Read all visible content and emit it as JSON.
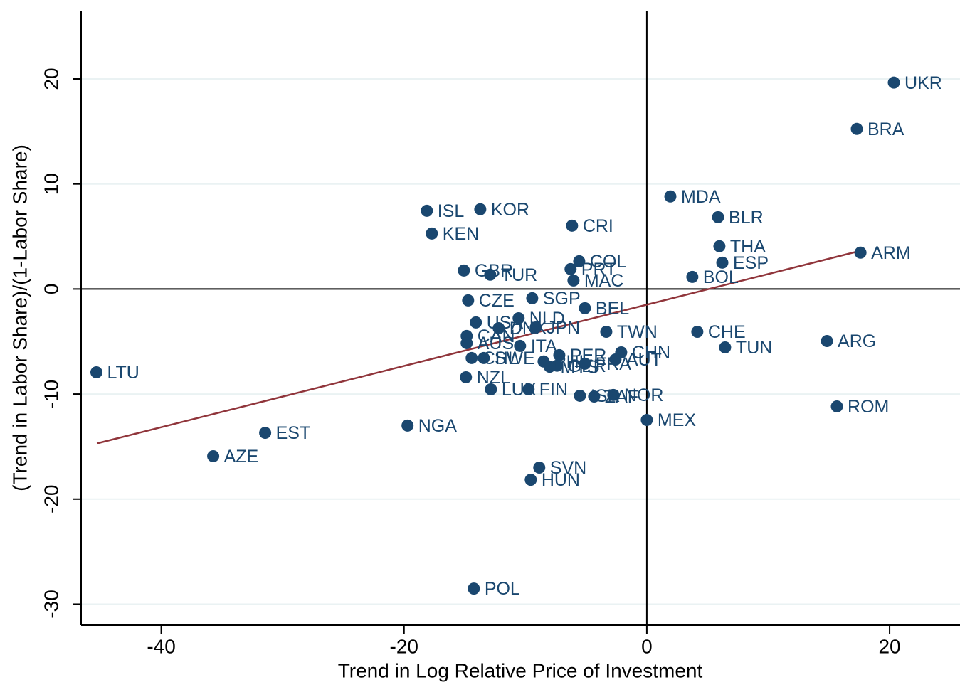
{
  "chart_data": {
    "type": "scatter",
    "x_label": "Trend in Log Relative Price of Investment",
    "y_label": "(Trend in Labor Share)/(1-Labor Share)",
    "color": "#1a476f",
    "x": [
      20.35,
      17.3,
      1.94,
      5.87,
      17.6,
      5.98,
      6.22,
      3.75,
      -6.16,
      -18.12,
      -13.72,
      -17.71,
      -15.07,
      -12.9,
      -5.57,
      -6.28,
      -6.04,
      -9.44,
      -14.72,
      -5.1,
      -14.08,
      -10.56,
      -12.2,
      -9.15,
      -3.34,
      4.16,
      -14.84,
      -14.84,
      -10.44,
      14.84,
      6.45,
      -2.11,
      -7.21,
      -2.58,
      -5.1,
      -7.4,
      -8.5,
      -8.0,
      -14.43,
      -13.43,
      -14.9,
      -12.84,
      -9.74,
      -2.76,
      -5.51,
      -4.34,
      0,
      15.66,
      -45.34,
      -31.44,
      -35.72,
      -19.71,
      -8.86,
      -9.56,
      -14.25
    ],
    "y": [
      19.65,
      15.24,
      8.81,
      6.84,
      3.46,
      4.07,
      2.51,
      1.15,
      6.03,
      7.45,
      7.59,
      5.28,
      1.76,
      1.36,
      2.64,
      1.9,
      0.81,
      -0.88,
      -1.08,
      -1.83,
      -3.18,
      -2.78,
      -3.73,
      -3.66,
      -4.07,
      -4.07,
      -4.47,
      -5.15,
      -5.42,
      -4.95,
      -5.56,
      -6.03,
      -6.3,
      -6.71,
      -7.11,
      -7.3,
      -6.9,
      -7.4,
      -6.57,
      -6.57,
      -8.4,
      -9.55,
      -9.55,
      -10.09,
      -10.16,
      -10.23,
      -12.47,
      -11.18,
      -7.93,
      -13.69,
      -15.92,
      -13.0,
      -17.0,
      -18.16,
      -28.52
    ],
    "point_labels": [
      "UKR",
      "BRA",
      "MDA",
      "BLR",
      "ARM",
      "THA",
      "ESP",
      "BOL",
      "CRI",
      "ISL",
      "KOR",
      "KEN",
      "GBR",
      "TUR",
      "COL",
      "PRT",
      "MAC",
      "SGP",
      "CZE",
      "BEL",
      "USA",
      "NLD",
      "DNK",
      "JPN",
      "TWN",
      "CHE",
      "CAN",
      "AUS",
      "ITA",
      "ARG",
      "TUN",
      "CHN",
      "PER",
      "AUT",
      "FRA",
      "GER",
      "PHL",
      "MYS",
      "CHL",
      "SWE",
      "NZL",
      "LUX",
      "FIN",
      "NOR",
      "ISR",
      "ZAF",
      "MEX",
      "ROM",
      "LTU",
      "EST",
      "AZE",
      "NGA",
      "SVN",
      "HUN",
      "POL"
    ],
    "fit_line": {
      "color": "#90353b",
      "x": [
        -45.3,
        17.8
      ],
      "y": [
        -14.7,
        3.7
      ]
    },
    "xline": 0,
    "yline": 0,
    "xlim": [
      -46.6,
      25.8
    ],
    "ylim": [
      -32.0,
      26.5
    ],
    "xticks": [
      -40,
      -20,
      0,
      20
    ],
    "yticks": [
      -30,
      -20,
      -10,
      0,
      10,
      20
    ],
    "grid": true
  }
}
